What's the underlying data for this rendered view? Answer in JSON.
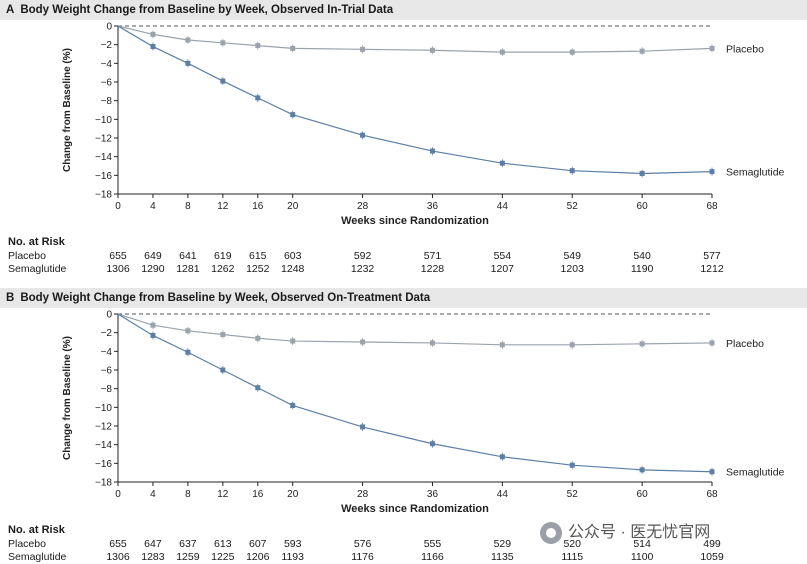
{
  "panels": [
    {
      "letter": "A",
      "title": "Body Weight Change from Baseline by Week, Observed In-Trial Data",
      "ylabel": "Change from Baseline (%)",
      "xlabel": "Weeks since Randomization",
      "risk_header": "No. at Risk",
      "risk": [
        {
          "label": "Placebo",
          "values": [
            "655",
            "649",
            "641",
            "619",
            "615",
            "603",
            "592",
            "571",
            "554",
            "549",
            "540",
            "577"
          ]
        },
        {
          "label": "Semaglutide",
          "values": [
            "1306",
            "1290",
            "1281",
            "1262",
            "1252",
            "1248",
            "1232",
            "1228",
            "1207",
            "1203",
            "1190",
            "1212"
          ]
        }
      ]
    },
    {
      "letter": "B",
      "title": "Body Weight Change from Baseline by Week, Observed On-Treatment Data",
      "ylabel": "Change from Baseline (%)",
      "xlabel": "Weeks since Randomization",
      "risk_header": "No. at Risk",
      "risk": [
        {
          "label": "Placebo",
          "values": [
            "655",
            "647",
            "637",
            "613",
            "607",
            "593",
            "576",
            "555",
            "529",
            "520",
            "514",
            "499"
          ]
        },
        {
          "label": "Semaglutide",
          "values": [
            "1306",
            "1283",
            "1259",
            "1225",
            "1206",
            "1193",
            "1176",
            "1166",
            "1135",
            "1115",
            "1100",
            "1059"
          ]
        }
      ]
    }
  ],
  "chart_data": [
    {
      "type": "line",
      "title": "Body Weight Change from Baseline by Week, Observed In-Trial Data",
      "xlabel": "Weeks since Randomization",
      "ylabel": "Change from Baseline (%)",
      "x": [
        0,
        4,
        8,
        12,
        16,
        20,
        28,
        36,
        44,
        52,
        60,
        68
      ],
      "xlim": [
        0,
        68
      ],
      "ylim": [
        -18,
        0
      ],
      "yticks": [
        0,
        -2,
        -4,
        -6,
        -8,
        -10,
        -12,
        -14,
        -16,
        -18
      ],
      "grid": false,
      "legend": "line-end labels",
      "series": [
        {
          "name": "Placebo",
          "color": "#9aa3ad",
          "values": [
            0,
            -0.9,
            -1.5,
            -1.8,
            -2.1,
            -2.4,
            -2.5,
            -2.6,
            -2.8,
            -2.8,
            -2.7,
            -2.4
          ]
        },
        {
          "name": "Semaglutide",
          "color": "#5b7fa6",
          "values": [
            0,
            -2.2,
            -4.0,
            -5.9,
            -7.7,
            -9.5,
            -11.7,
            -13.4,
            -14.7,
            -15.5,
            -15.8,
            -15.6
          ]
        }
      ]
    },
    {
      "type": "line",
      "title": "Body Weight Change from Baseline by Week, Observed On-Treatment Data",
      "xlabel": "Weeks since Randomization",
      "ylabel": "Change from Baseline (%)",
      "x": [
        0,
        4,
        8,
        12,
        16,
        20,
        28,
        36,
        44,
        52,
        60,
        68
      ],
      "xlim": [
        0,
        68
      ],
      "ylim": [
        -18,
        0
      ],
      "yticks": [
        0,
        -2,
        -4,
        -6,
        -8,
        -10,
        -12,
        -14,
        -16,
        -18
      ],
      "grid": false,
      "legend": "line-end labels",
      "series": [
        {
          "name": "Placebo",
          "color": "#9aa3ad",
          "values": [
            0,
            -1.2,
            -1.8,
            -2.2,
            -2.6,
            -2.9,
            -3.0,
            -3.1,
            -3.3,
            -3.3,
            -3.2,
            -3.1
          ]
        },
        {
          "name": "Semaglutide",
          "color": "#5b7fa6",
          "values": [
            0,
            -2.3,
            -4.1,
            -6.0,
            -7.9,
            -9.8,
            -12.1,
            -13.9,
            -15.3,
            -16.2,
            -16.7,
            -16.9
          ]
        }
      ]
    }
  ],
  "watermark": "公众号 · 医无忧官网"
}
